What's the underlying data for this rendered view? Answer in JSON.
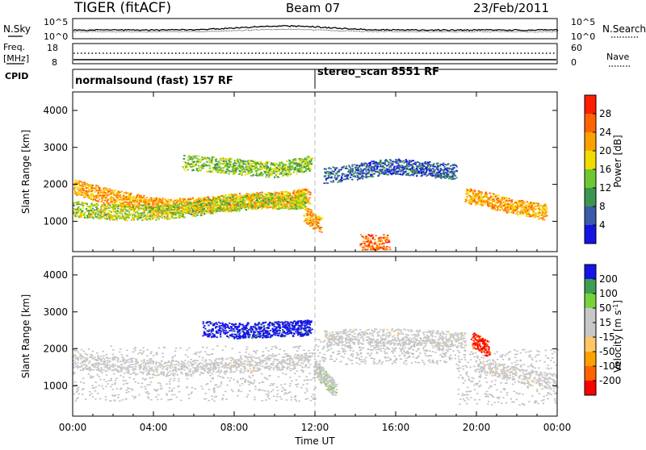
{
  "header": {
    "title": "TIGER (fitACF)",
    "beam": "Beam 07",
    "date": "23/Feb/2011"
  },
  "strips": {
    "nsky_label": "N.Sky",
    "nsearch_label": "N.Search",
    "noise_ticks": [
      "10^5",
      "10^0"
    ],
    "freq_label_line1": "Freq.",
    "freq_label_line2": "[MHz]",
    "freq_ticks": [
      "18",
      "8"
    ],
    "nave_label": "Nave",
    "nave_ticks": [
      "60",
      "0"
    ],
    "cpid_label": "CPID",
    "cpid_segments": [
      "normalsound (fast) 157 RF",
      "stereo_scan 8551 RF"
    ]
  },
  "colors": {
    "power_scale": [
      "#1414e6",
      "#3c5aaa",
      "#3c9650",
      "#6ec832",
      "#f0dc00",
      "#ffa000",
      "#ff6400",
      "#ff1e00"
    ],
    "velocity_scale": [
      "#ff0000",
      "#ff6400",
      "#ffa000",
      "#ffc864",
      "#c8c8c8",
      "#c8c8c8",
      "#78d23c",
      "#3ca050",
      "#1414e6"
    ],
    "ground_scatter": "#c0c0c0"
  },
  "chart_data": [
    {
      "type": "heatmap",
      "title": "",
      "xlabel": "",
      "ylabel": "Slant Range [km]",
      "xlim": [
        "00:00",
        "24:00"
      ],
      "ylim": [
        180,
        4500
      ],
      "x_ticks": [
        "00:00",
        "04:00",
        "08:00",
        "12:00",
        "16:00",
        "20:00",
        "00:00"
      ],
      "y_ticks": [
        "1000",
        "2000",
        "3000",
        "4000"
      ],
      "colorbar_label": "Power [dB]",
      "colorbar_ticks": [
        "4",
        "8",
        "12",
        "16",
        "20",
        "24",
        "28"
      ],
      "colorbar_range": [
        0,
        32
      ],
      "series": [
        {
          "x_hours": [
            0,
            1,
            2,
            3,
            4,
            5,
            6,
            7,
            8,
            9,
            10,
            11,
            11.7
          ],
          "y_km": [
            1950,
            1800,
            1650,
            1560,
            1450,
            1420,
            1450,
            1500,
            1550,
            1600,
            1600,
            1650,
            1700
          ],
          "value_db": 22
        },
        {
          "x_hours": [
            0,
            1,
            2,
            3,
            4,
            5,
            6,
            7,
            8,
            9,
            10,
            11,
            11.5
          ],
          "y_km": [
            1350,
            1300,
            1250,
            1250,
            1250,
            1300,
            1350,
            1450,
            1500,
            1550,
            1550,
            1550,
            1600
          ],
          "value_db": 16
        },
        {
          "x_hours": [
            5.5,
            7,
            8,
            9,
            10,
            11,
            11.8
          ],
          "y_km": [
            2600,
            2550,
            2500,
            2450,
            2400,
            2500,
            2600
          ],
          "value_db": 14
        },
        {
          "x_hours": [
            12.5,
            14,
            15,
            16,
            17,
            18,
            19
          ],
          "y_km": [
            2250,
            2350,
            2450,
            2500,
            2450,
            2400,
            2350
          ],
          "value_db": 6
        },
        {
          "x_hours": [
            19.5,
            20.5,
            21.5,
            22.5,
            23.5
          ],
          "y_km": [
            1700,
            1600,
            1450,
            1350,
            1250
          ],
          "value_db": 22
        },
        {
          "x_hours": [
            11.5,
            12.3
          ],
          "y_km": [
            1200,
            900
          ],
          "value_db": 22
        },
        {
          "x_hours": [
            14.3,
            15.7
          ],
          "y_km": [
            450,
            450
          ],
          "value_db": 26
        }
      ]
    },
    {
      "type": "heatmap",
      "title": "",
      "xlabel": "Time UT",
      "ylabel": "Slant Range [km]",
      "xlim": [
        "00:00",
        "24:00"
      ],
      "ylim": [
        180,
        4500
      ],
      "x_ticks": [
        "00:00",
        "04:00",
        "08:00",
        "12:00",
        "16:00",
        "20:00",
        "00:00"
      ],
      "y_ticks": [
        "1000",
        "2000",
        "3000",
        "4000"
      ],
      "colorbar_label": "Velocity [m s-1]",
      "colorbar_ticks": [
        "200",
        "100",
        "50",
        "15",
        "-15",
        "-50",
        "-100",
        "-200"
      ],
      "colorbar_range": [
        -250,
        250
      ],
      "series": [
        {
          "x_hours": [
            0,
            2,
            4,
            6,
            8,
            10,
            11.8
          ],
          "y_km": [
            1700,
            1600,
            1500,
            1500,
            1600,
            1650,
            1700
          ],
          "value_ms": 0
        },
        {
          "x_hours": [
            6.5,
            8,
            9,
            10,
            11,
            11.8
          ],
          "y_km": [
            2550,
            2500,
            2520,
            2540,
            2560,
            2600
          ],
          "value_ms": 220
        },
        {
          "x_hours": [
            12,
            12.5,
            13
          ],
          "y_km": [
            1500,
            1200,
            900
          ],
          "value_ms": 60
        },
        {
          "x_hours": [
            12.5,
            14,
            16,
            18,
            19.5
          ],
          "y_km": [
            2300,
            2350,
            2350,
            2300,
            2250
          ],
          "value_ms": 0
        },
        {
          "x_hours": [
            19.8,
            20.6
          ],
          "y_km": [
            2250,
            2000
          ],
          "value_ms": -200
        },
        {
          "x_hours": [
            20,
            22,
            24
          ],
          "y_km": [
            1600,
            1300,
            1100
          ],
          "value_ms": 0
        }
      ]
    }
  ]
}
